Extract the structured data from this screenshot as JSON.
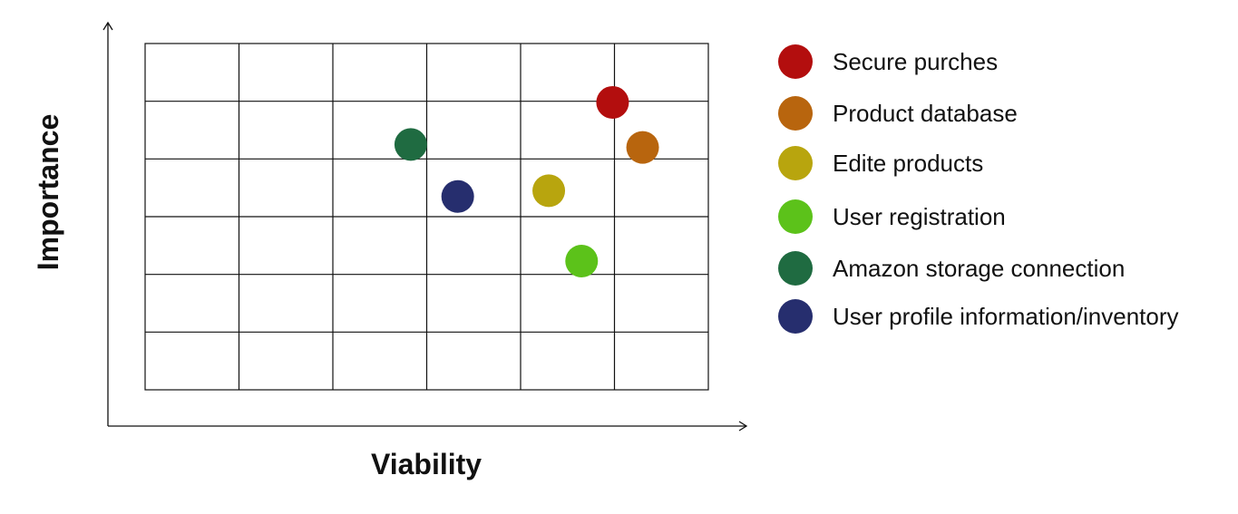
{
  "chart_data": {
    "type": "scatter",
    "title": "",
    "xlabel": "Viability",
    "ylabel": "Importance",
    "xlim": [
      0,
      6
    ],
    "ylim": [
      0,
      6
    ],
    "grid": true,
    "legend_position": "right",
    "series": [
      {
        "name": "Secure purches",
        "color": "#b30e0e",
        "x": 4.98,
        "y": 4.98
      },
      {
        "name": "Product database",
        "color": "#b8650e",
        "x": 5.3,
        "y": 4.2
      },
      {
        "name": "Edite products",
        "color": "#b8a50e",
        "x": 4.3,
        "y": 3.45
      },
      {
        "name": "User registration",
        "color": "#5cc21a",
        "x": 4.65,
        "y": 2.23
      },
      {
        "name": "Amazon storage connection",
        "color": "#1f6b41",
        "x": 2.83,
        "y": 4.25
      },
      {
        "name": "User profile information/inventory",
        "color": "#262e6e",
        "x": 3.33,
        "y": 3.35
      }
    ]
  }
}
